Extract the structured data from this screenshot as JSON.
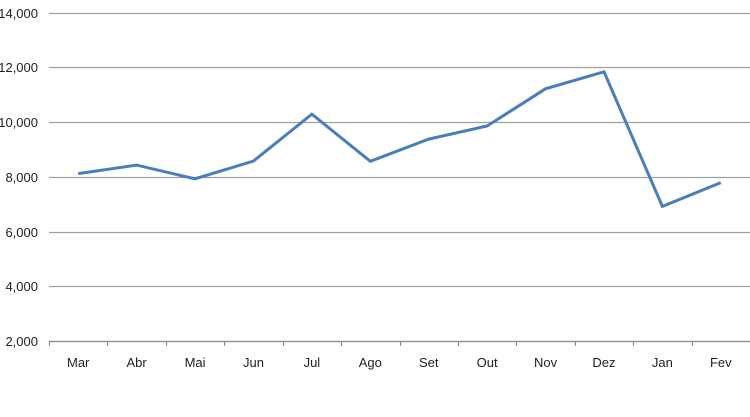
{
  "chart_data": {
    "type": "line",
    "title": "",
    "xlabel": "",
    "ylabel": "",
    "categories": [
      "Mar",
      "Abr",
      "Mai",
      "Jun",
      "Jul",
      "Ago",
      "Set",
      "Out",
      "Nov",
      "Dez",
      "Jan",
      "Fev"
    ],
    "series": [
      {
        "values": [
          8120,
          8430,
          7930,
          8580,
          10290,
          8570,
          9380,
          9860,
          11220,
          11840,
          6920,
          7790
        ],
        "color": "#4a7ebb"
      }
    ],
    "ylim": [
      2000,
      14000
    ],
    "yticks": [
      2000,
      4000,
      6000,
      8000,
      10000,
      12000,
      14000
    ],
    "ytick_labels": [
      "2,000",
      "4,000",
      "6,000",
      "8,000",
      "10,000",
      "12,000",
      "14,000"
    ],
    "grid": true,
    "legend": "none",
    "gridline_color": "#a0a0a0"
  }
}
